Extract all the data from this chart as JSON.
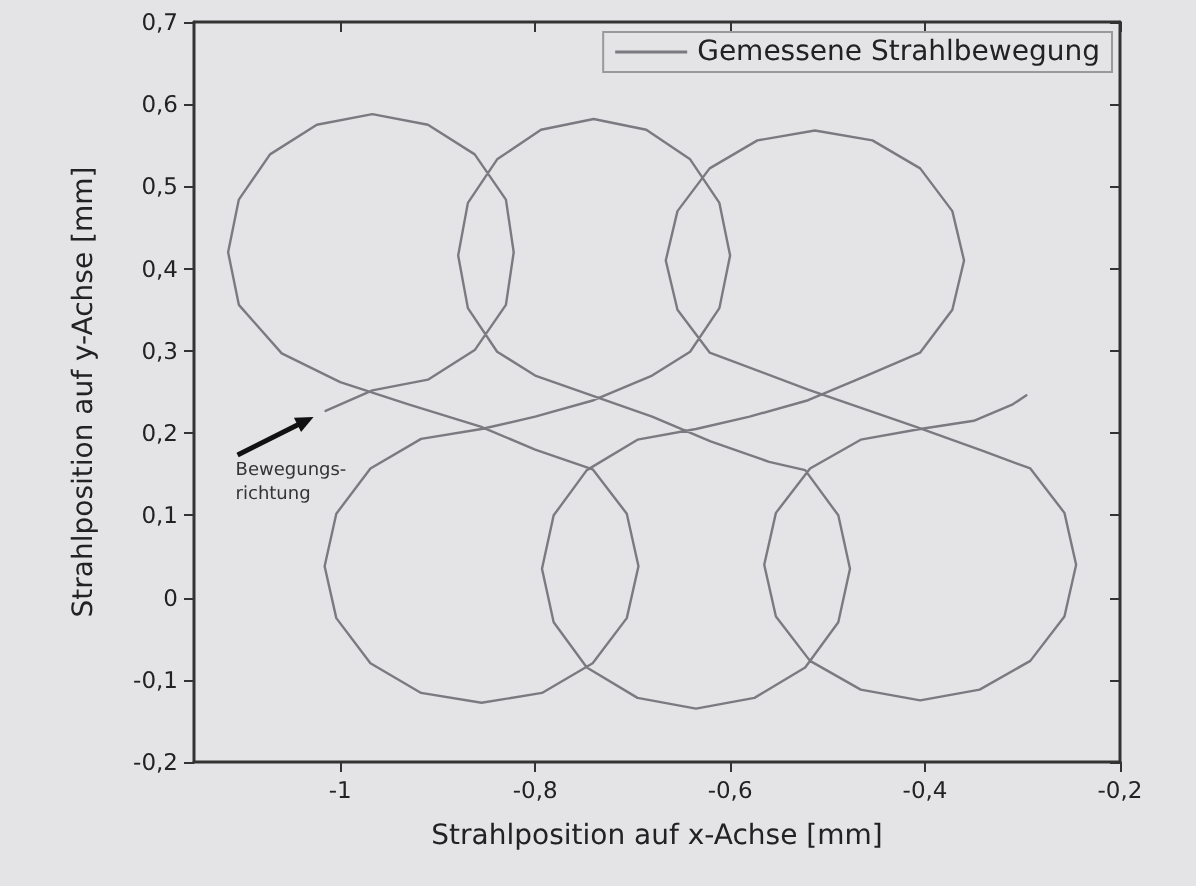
{
  "chart_data": {
    "type": "line",
    "xlabel": "Strahlposition auf x-Achse [mm]",
    "ylabel": "Strahlposition auf y-Achse [mm]",
    "xlim": [
      -1.15,
      -0.2
    ],
    "xticks": [
      {
        "value": -1,
        "label": "-1"
      },
      {
        "value": -0.8,
        "label": "-0,8"
      },
      {
        "value": -0.6,
        "label": "-0,6"
      },
      {
        "value": -0.4,
        "label": "-0,4"
      },
      {
        "value": -0.2,
        "label": "-0,2"
      }
    ],
    "ylim": [
      -0.2,
      0.7
    ],
    "yticks": [
      {
        "value": -0.2,
        "label": "-0,2"
      },
      {
        "value": -0.1,
        "label": "-0,1"
      },
      0,
      {
        "value": 0.1,
        "label": "0,1"
      },
      {
        "value": 0.2,
        "label": "0,2"
      },
      {
        "value": 0.3,
        "label": "0,3"
      },
      {
        "value": 0.4,
        "label": "0,4"
      },
      {
        "value": 0.5,
        "label": "0,5"
      },
      {
        "value": 0.6,
        "label": "0,6"
      },
      {
        "value": 0.7,
        "label": "0,7"
      }
    ],
    "grid": false,
    "legend": "top right",
    "marker": "none",
    "line_style": "solid",
    "annotations": [
      {
        "text": "Bewegungs-\nrichtung",
        "x": -1.015,
        "y": 0.227
      }
    ],
    "series": [
      {
        "name": "Gemessene Strahlbewegung",
        "color": "#7a7a80",
        "x": [
          -1.015,
          -0.967,
          -0.91,
          -0.862,
          -0.83,
          -0.822,
          -0.83,
          -0.862,
          -0.91,
          -0.967,
          -1.024,
          -1.072,
          -1.104,
          -1.115,
          -1.104,
          -1.06,
          -1.0,
          -0.93,
          -0.856,
          -0.8,
          -0.741,
          -0.706,
          -0.694,
          -0.706,
          -0.741,
          -0.793,
          -0.855,
          -0.917,
          -0.969,
          -1.004,
          -1.016,
          -1.004,
          -0.969,
          -0.917,
          -0.855,
          -0.8,
          -0.74,
          -0.68,
          -0.641,
          -0.611,
          -0.6,
          -0.611,
          -0.641,
          -0.686,
          -0.74,
          -0.794,
          -0.839,
          -0.869,
          -0.879,
          -0.869,
          -0.839,
          -0.8,
          -0.74,
          -0.68,
          -0.62,
          -0.56,
          -0.523,
          -0.489,
          -0.477,
          -0.489,
          -0.523,
          -0.575,
          -0.635,
          -0.695,
          -0.747,
          -0.781,
          -0.793,
          -0.781,
          -0.747,
          -0.695,
          -0.635,
          -0.58,
          -0.52,
          -0.46,
          -0.405,
          -0.372,
          -0.36,
          -0.372,
          -0.405,
          -0.454,
          -0.513,
          -0.572,
          -0.621,
          -0.654,
          -0.666,
          -0.654,
          -0.621,
          -0.52,
          -0.41,
          -0.34,
          -0.292,
          -0.257,
          -0.245,
          -0.257,
          -0.292,
          -0.344,
          -0.405,
          -0.466,
          -0.518,
          -0.553,
          -0.565,
          -0.553,
          -0.518,
          -0.466,
          -0.405,
          -0.35,
          -0.31,
          -0.296
        ],
        "values": [
          0.227,
          0.252,
          0.265,
          0.301,
          0.356,
          0.42,
          0.484,
          0.539,
          0.575,
          0.588,
          0.575,
          0.539,
          0.484,
          0.42,
          0.356,
          0.297,
          0.262,
          0.235,
          0.208,
          0.18,
          0.156,
          0.102,
          0.038,
          -0.025,
          -0.08,
          -0.116,
          -0.128,
          -0.116,
          -0.08,
          -0.025,
          0.038,
          0.102,
          0.157,
          0.193,
          0.205,
          0.22,
          0.24,
          0.27,
          0.299,
          0.352,
          0.416,
          0.48,
          0.533,
          0.569,
          0.582,
          0.569,
          0.533,
          0.48,
          0.416,
          0.352,
          0.299,
          0.27,
          0.245,
          0.22,
          0.19,
          0.165,
          0.155,
          0.1,
          0.035,
          -0.03,
          -0.085,
          -0.122,
          -0.135,
          -0.122,
          -0.085,
          -0.03,
          0.035,
          0.1,
          0.155,
          0.192,
          0.205,
          0.22,
          0.24,
          0.27,
          0.298,
          0.35,
          0.41,
          0.47,
          0.522,
          0.556,
          0.568,
          0.556,
          0.522,
          0.47,
          0.41,
          0.35,
          0.298,
          0.253,
          0.208,
          0.178,
          0.157,
          0.103,
          0.04,
          -0.023,
          -0.077,
          -0.112,
          -0.125,
          -0.112,
          -0.077,
          -0.023,
          0.04,
          0.103,
          0.157,
          0.192,
          0.205,
          0.215,
          0.235,
          0.246
        ]
      }
    ]
  }
}
